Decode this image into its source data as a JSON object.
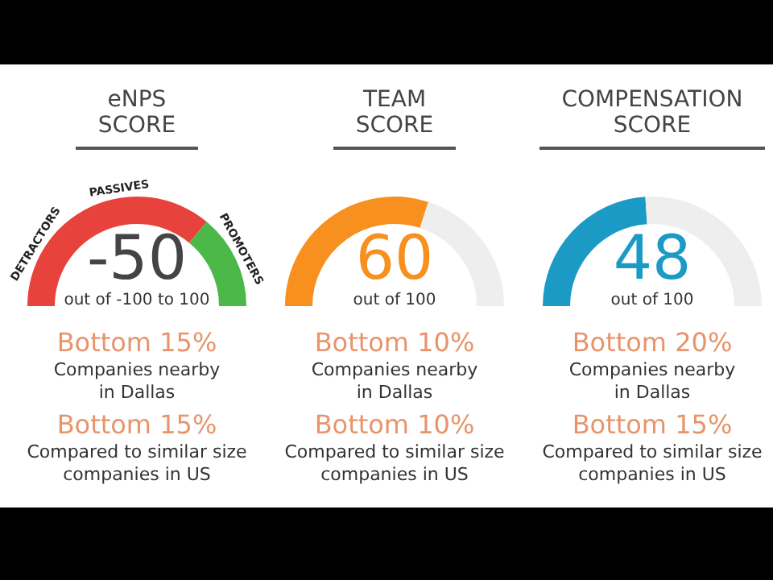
{
  "chart_data": [
    {
      "type": "donut",
      "title": "eNPS SCORE",
      "categories": [
        "DETRACTORS",
        "PROMOTERS"
      ],
      "values": [
        72,
        28
      ],
      "colors": [
        "#e8423c",
        "#4cb848"
      ],
      "annotations": [
        "PASSIVES",
        "-50",
        "out of -100 to 100",
        "Bottom 15%",
        "Companies nearby in Dallas",
        "Bottom 15%",
        "Compared to similar size companies in US"
      ]
    },
    {
      "type": "donut",
      "title": "TEAM SCORE",
      "categories": [
        null,
        null
      ],
      "values": [
        60,
        40
      ],
      "colors": [
        "#f7901e",
        "#eeeeee"
      ],
      "annotations": [
        "60",
        "out of 100",
        "Bottom 10%",
        "Companies nearby in Dallas",
        "Bottom 10%",
        "Compared to similar size companies in US"
      ]
    },
    {
      "type": "donut",
      "title": "COMPENSATION SCORE",
      "categories": [
        null,
        null
      ],
      "values": [
        48,
        52
      ],
      "colors": [
        "#1b9ac6",
        "#eeeeee"
      ],
      "annotations": [
        "48",
        "out of 100",
        "Bottom 20%",
        "Companies nearby in Dallas",
        "Bottom 15%",
        "Compared to similar size companies in US"
      ]
    }
  ]
}
